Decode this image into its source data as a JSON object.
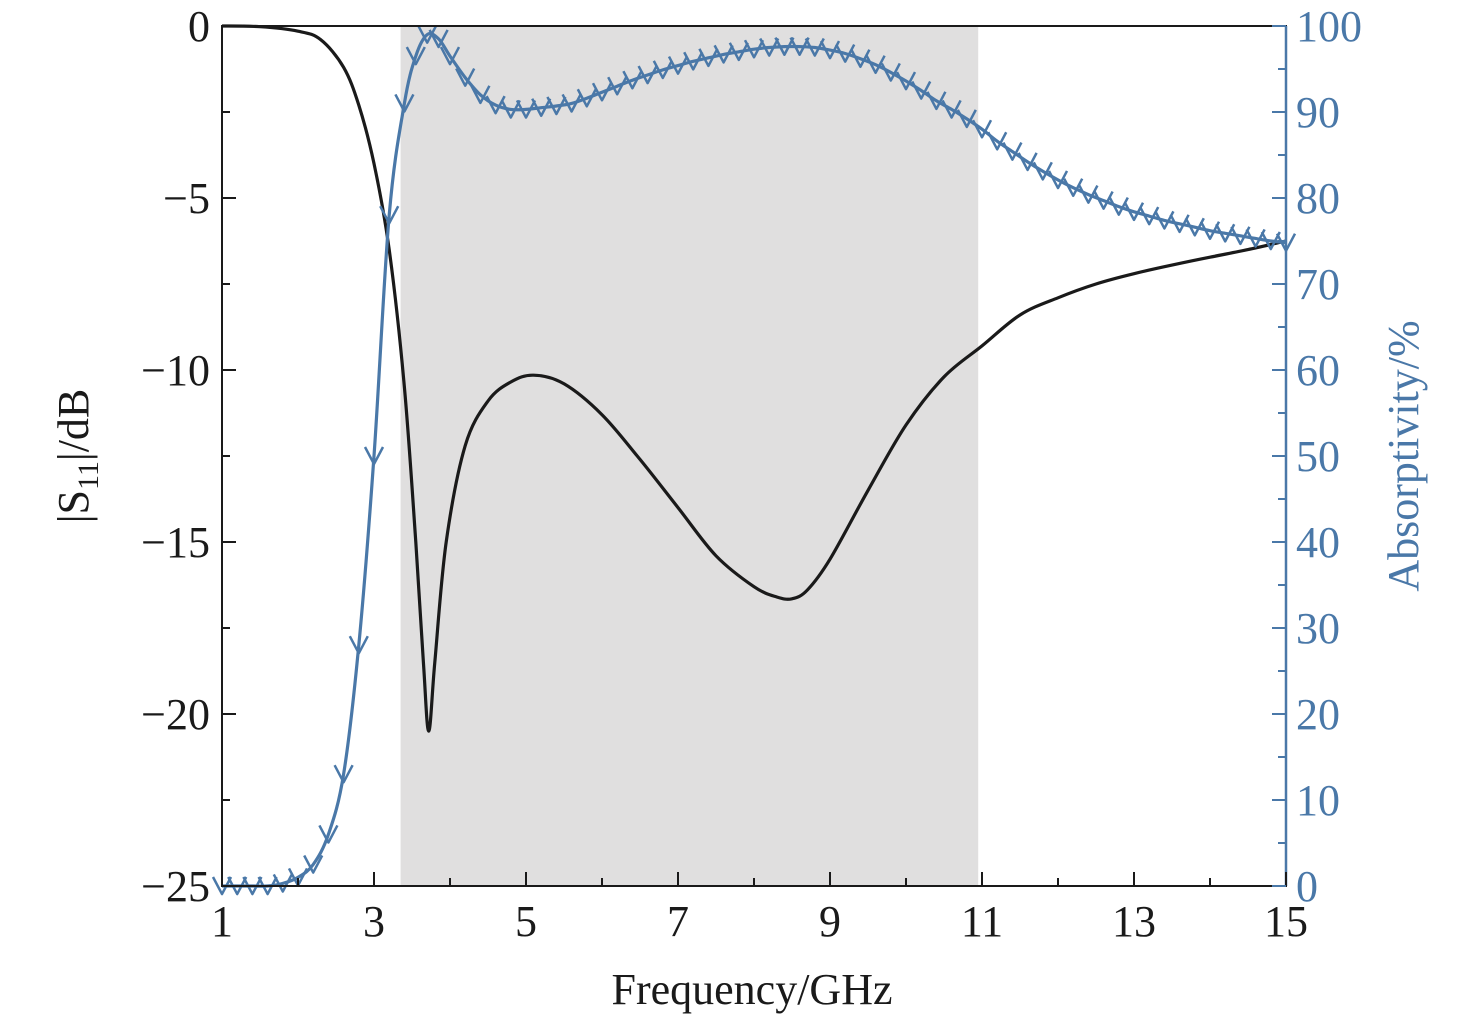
{
  "chart_data": {
    "type": "line",
    "xlabel": "Frequency/GHz",
    "ylabel_left": {
      "main": "|S",
      "sub": "11",
      "tail": "|/dB"
    },
    "ylabel_right": "Absorptivity/%",
    "xlim": [
      1,
      15
    ],
    "ylim_left": [
      -25,
      0
    ],
    "ylim_right": [
      0,
      100
    ],
    "x_ticks": [
      1,
      3,
      5,
      7,
      9,
      11,
      13,
      15
    ],
    "x_tick_labels": [
      "1",
      "3",
      "5",
      "7",
      "9",
      "11",
      "13",
      "15"
    ],
    "y_left_ticks": [
      0,
      -5,
      -10,
      -15,
      -20,
      -25
    ],
    "y_left_tick_labels": [
      "0",
      "−5",
      "−10",
      "−15",
      "−20",
      "−25"
    ],
    "y_right_ticks": [
      100,
      90,
      80,
      70,
      60,
      50,
      40,
      30,
      20,
      10,
      0
    ],
    "y_right_tick_labels": [
      "100",
      "90",
      "80",
      "70",
      "60",
      "50",
      "40",
      "30",
      "20",
      "10",
      "0"
    ],
    "shaded_band": {
      "x_start": 3.35,
      "x_end": 10.95,
      "color": "#e0dfdf"
    },
    "colors": {
      "s11": "#1a1a1a",
      "absorptivity": "#4a78a8"
    },
    "series": [
      {
        "axis": "left",
        "x": [
          1,
          1.5,
          2,
          2.3,
          2.6,
          2.8,
          3.0,
          3.2,
          3.4,
          3.55,
          3.65,
          3.72,
          3.8,
          3.95,
          4.2,
          4.5,
          4.8,
          5.1,
          5.5,
          6.0,
          6.5,
          7.0,
          7.5,
          8.0,
          8.3,
          8.5,
          8.7,
          9.0,
          9.5,
          10.0,
          10.5,
          11.0,
          11.5,
          12.0,
          12.5,
          13.0,
          13.5,
          14.0,
          14.5,
          15.0
        ],
        "values": [
          0,
          -0.02,
          -0.15,
          -0.4,
          -1.2,
          -2.3,
          -4.0,
          -6.5,
          -10.5,
          -15.0,
          -18.5,
          -20.5,
          -18.5,
          -15.0,
          -12.2,
          -10.9,
          -10.35,
          -10.15,
          -10.4,
          -11.3,
          -12.6,
          -14.0,
          -15.4,
          -16.3,
          -16.6,
          -16.65,
          -16.4,
          -15.5,
          -13.5,
          -11.6,
          -10.2,
          -9.3,
          -8.4,
          -7.9,
          -7.5,
          -7.2,
          -6.95,
          -6.72,
          -6.5,
          -6.25
        ]
      },
      {
        "axis": "right",
        "x": [
          1,
          1.2,
          1.4,
          1.6,
          1.8,
          2.0,
          2.2,
          2.4,
          2.6,
          2.8,
          3.0,
          3.2,
          3.4,
          3.55,
          3.7,
          3.85,
          4.0,
          4.2,
          4.4,
          4.6,
          4.8,
          5.0,
          5.2,
          5.4,
          5.6,
          5.8,
          6.0,
          6.2,
          6.4,
          6.6,
          6.8,
          7.0,
          7.2,
          7.4,
          7.6,
          7.8,
          8.0,
          8.2,
          8.4,
          8.6,
          8.8,
          9.0,
          9.2,
          9.4,
          9.6,
          9.8,
          10.0,
          10.2,
          10.4,
          10.6,
          10.8,
          11.0,
          11.2,
          11.4,
          11.6,
          11.8,
          12.0,
          12.2,
          12.4,
          12.6,
          12.8,
          13.0,
          13.2,
          13.4,
          13.6,
          13.8,
          14.0,
          14.2,
          14.4,
          14.6,
          14.8,
          15.0
        ],
        "values": [
          0,
          0,
          0,
          0,
          0.3,
          1.0,
          2.5,
          6.0,
          13.0,
          28.0,
          50.0,
          78.0,
          91.0,
          96.5,
          99.0,
          98.5,
          96.5,
          94.0,
          92.0,
          90.8,
          90.3,
          90.3,
          90.5,
          90.7,
          91.0,
          91.6,
          92.3,
          93.0,
          93.7,
          94.3,
          94.9,
          95.4,
          95.9,
          96.3,
          96.7,
          97.0,
          97.3,
          97.5,
          97.6,
          97.6,
          97.5,
          97.2,
          96.8,
          96.2,
          95.5,
          94.6,
          93.6,
          92.5,
          91.3,
          90.3,
          89.2,
          88.0,
          86.6,
          85.4,
          84.2,
          83.1,
          82.1,
          81.2,
          80.4,
          79.7,
          79.0,
          78.4,
          77.9,
          77.4,
          77.0,
          76.6,
          76.2,
          75.9,
          75.6,
          75.3,
          75.0,
          74.8
        ]
      }
    ]
  }
}
